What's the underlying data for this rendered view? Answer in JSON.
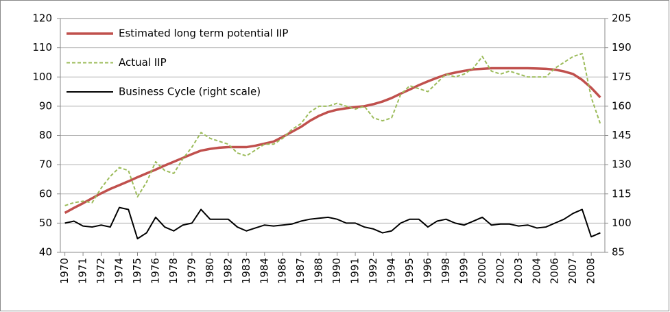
{
  "chart_data": {
    "type": "line",
    "categories": [
      "1970",
      null,
      "1971",
      null,
      "1972",
      null,
      "1974",
      null,
      "1975",
      null,
      "1976",
      null,
      "1978",
      null,
      "1979",
      null,
      "1980",
      null,
      "1982",
      null,
      "1983",
      null,
      "1984",
      null,
      "1986",
      null,
      "1987",
      null,
      "1988",
      null,
      "1990",
      null,
      "1991",
      null,
      "1992",
      null,
      "1994",
      null,
      "1995",
      null,
      "1996",
      null,
      "1998",
      null,
      "1999",
      null,
      "2000",
      null,
      "2002",
      null,
      "2003",
      null,
      "2004",
      null,
      "2006",
      null,
      "2007",
      null,
      "2008",
      null
    ],
    "series": [
      {
        "name": "Estimated long term potential IIP",
        "color": "#c0504d",
        "style": "solid",
        "values": [
          53.5,
          55.2,
          56.8,
          58.5,
          60.2,
          61.7,
          63.0,
          64.3,
          65.7,
          67.0,
          68.3,
          69.7,
          71.0,
          72.3,
          73.6,
          74.8,
          75.4,
          75.8,
          76.0,
          76.0,
          76.0,
          76.5,
          77.2,
          77.9,
          79.5,
          81.2,
          82.9,
          85.0,
          86.7,
          88.0,
          88.8,
          89.3,
          89.7,
          90.0,
          90.7,
          91.6,
          92.8,
          94.3,
          95.7,
          97.2,
          98.5,
          99.7,
          100.8,
          101.5,
          102.1,
          102.6,
          102.8,
          103.0,
          103.0,
          103.0,
          103.0,
          103.0,
          102.9,
          102.8,
          102.5,
          101.9,
          101.0,
          99.0,
          96.3,
          93.0
        ]
      },
      {
        "name": "Actual IIP",
        "color": "#9bbb59",
        "style": "dashed",
        "values": [
          56,
          57,
          57.5,
          57,
          62,
          66,
          69,
          68,
          59,
          64,
          71,
          68,
          67,
          72,
          76,
          81,
          79,
          78,
          77,
          74,
          73,
          75,
          77,
          77,
          79,
          82,
          84,
          88,
          90,
          90,
          91,
          90,
          89,
          90,
          86,
          85,
          86,
          94,
          97,
          96,
          95,
          98,
          101,
          100,
          101,
          103,
          107,
          102,
          101,
          102,
          101,
          100,
          100,
          100,
          103,
          105,
          107,
          108,
          93,
          84
        ]
      },
      {
        "name": "Business Cycle (right scale)",
        "color": "#000000",
        "style": "solid",
        "axis": "y2",
        "values": [
          100,
          101,
          98.5,
          98,
          99,
          98,
          108,
          107,
          92,
          95,
          103,
          98,
          96,
          99,
          100,
          107,
          102,
          102,
          102,
          98,
          96,
          97.5,
          99,
          98.5,
          99,
          99.5,
          101,
          102,
          102.5,
          103,
          102,
          100,
          100,
          98,
          97,
          95,
          96,
          100,
          102,
          102,
          98,
          101,
          102,
          100,
          99,
          101,
          103,
          99,
          99.5,
          99.5,
          98.5,
          99,
          97.5,
          98,
          100,
          102,
          105,
          107,
          93,
          95
        ]
      }
    ],
    "ylim": [
      40,
      120
    ],
    "yticks": [
      40,
      50,
      60,
      70,
      80,
      90,
      100,
      110,
      120
    ],
    "y2lim": [
      85,
      205
    ],
    "y2ticks": [
      85,
      100,
      115,
      130,
      145,
      160,
      175,
      190,
      205
    ],
    "grid": true,
    "legend": "upper left"
  }
}
